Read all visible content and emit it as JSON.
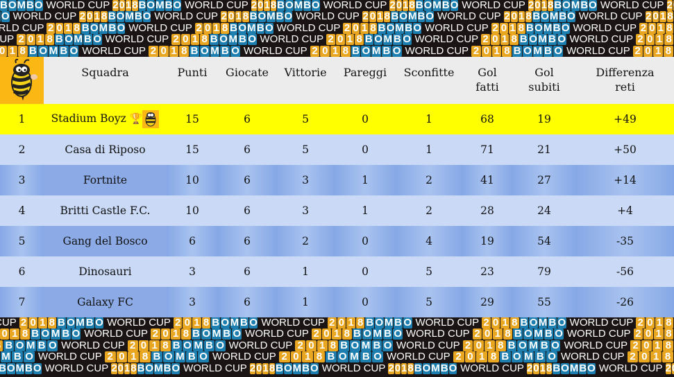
{
  "banner": {
    "text": "BOMBO WORLD CUP 2018"
  },
  "header": {
    "columns": [
      "Squadra",
      "Punti",
      "Giocate",
      "Vittorie",
      "Pareggi",
      "Sconfitte",
      "Gol fatti",
      "Gol subiti",
      "Differenza reti"
    ]
  },
  "rows": [
    {
      "pos": "1",
      "team": "Stadium Boyz",
      "pts": "15",
      "played": "6",
      "won": "5",
      "drawn": "0",
      "lost": "1",
      "gf": "68",
      "ga": "19",
      "diff": "+49"
    },
    {
      "pos": "2",
      "team": "Casa di Riposo",
      "pts": "15",
      "played": "6",
      "won": "5",
      "drawn": "0",
      "lost": "1",
      "gf": "71",
      "ga": "21",
      "diff": "+50"
    },
    {
      "pos": "3",
      "team": "Fortnite",
      "pts": "10",
      "played": "6",
      "won": "3",
      "drawn": "1",
      "lost": "2",
      "gf": "41",
      "ga": "27",
      "diff": "+14"
    },
    {
      "pos": "4",
      "team": "Britti Castle F.C.",
      "pts": "10",
      "played": "6",
      "won": "3",
      "drawn": "1",
      "lost": "2",
      "gf": "28",
      "ga": "24",
      "diff": "+4"
    },
    {
      "pos": "5",
      "team": "Gang del Bosco",
      "pts": "6",
      "played": "6",
      "won": "2",
      "drawn": "0",
      "lost": "4",
      "gf": "19",
      "ga": "54",
      "diff": "-35"
    },
    {
      "pos": "6",
      "team": "Dinosauri",
      "pts": "3",
      "played": "6",
      "won": "1",
      "drawn": "0",
      "lost": "5",
      "gf": "23",
      "ga": "79",
      "diff": "-56"
    },
    {
      "pos": "7",
      "team": "Galaxy FC",
      "pts": "3",
      "played": "6",
      "won": "1",
      "drawn": "0",
      "lost": "5",
      "gf": "29",
      "ga": "55",
      "diff": "-26"
    }
  ],
  "colors": {
    "leader": "#ffff00",
    "light_row": "#c9d9f6",
    "dark_row": "#8cabe6",
    "logo_bg": "#fbb713"
  },
  "icons": {
    "logo": "bee-mascot-icon",
    "leader": "trophy-icon"
  }
}
